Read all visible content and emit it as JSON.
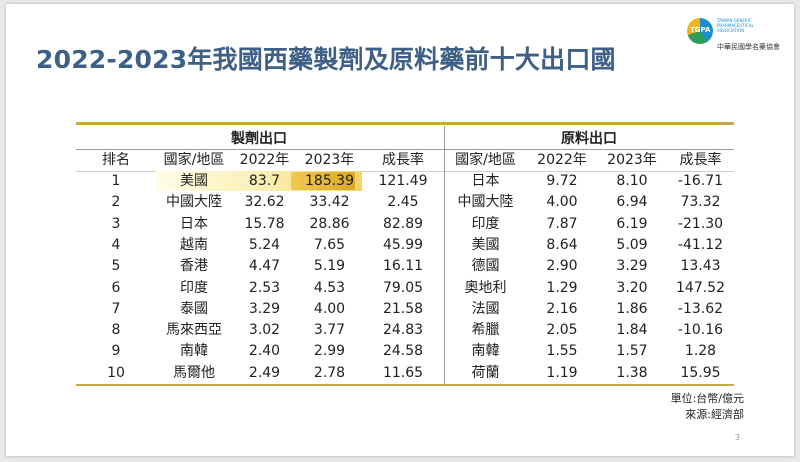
{
  "title": "2022-2023年我國西藥製劑及原料藥前十大出口國",
  "logo": {
    "english": "TAIWAN GENERIC PHARMACEUTICAL ASSOCIATION",
    "chinese": "中華民國學名藥協會",
    "mark": "TGPA"
  },
  "sections": {
    "left": "製劑出口",
    "right": "原料出口"
  },
  "headers": [
    "排名",
    "國家/地區",
    "2022年",
    "2023年",
    "成長率",
    "國家/地區",
    "2022年",
    "2023年",
    "成長率"
  ],
  "rows": [
    [
      "1",
      "美國",
      "83.7",
      "185.39",
      "121.49",
      "日本",
      "9.72",
      "8.10",
      "-16.71"
    ],
    [
      "2",
      "中國大陸",
      "32.62",
      "33.42",
      "2.45",
      "中國大陸",
      "4.00",
      "6.94",
      "73.32"
    ],
    [
      "3",
      "日本",
      "15.78",
      "28.86",
      "82.89",
      "印度",
      "7.87",
      "6.19",
      "-21.30"
    ],
    [
      "4",
      "越南",
      "5.24",
      "7.65",
      "45.99",
      "美國",
      "8.64",
      "5.09",
      "-41.12"
    ],
    [
      "5",
      "香港",
      "4.47",
      "5.19",
      "16.11",
      "德國",
      "2.90",
      "3.29",
      "13.43"
    ],
    [
      "6",
      "印度",
      "2.53",
      "4.53",
      "79.05",
      "奧地利",
      "1.29",
      "3.20",
      "147.52"
    ],
    [
      "7",
      "泰國",
      "3.29",
      "4.00",
      "21.58",
      "法國",
      "2.16",
      "1.86",
      "-13.62"
    ],
    [
      "8",
      "馬來西亞",
      "3.02",
      "3.77",
      "24.83",
      "希臘",
      "2.05",
      "1.84",
      "-10.16"
    ],
    [
      "9",
      "南韓",
      "2.40",
      "2.99",
      "24.58",
      "南韓",
      "1.55",
      "1.57",
      "1.28"
    ],
    [
      "10",
      "馬爾他",
      "2.49",
      "2.78",
      "11.65",
      "荷蘭",
      "1.19",
      "1.38",
      "15.95"
    ]
  ],
  "footer": {
    "unit": "單位:台幣/億元",
    "source": "來源:經濟部"
  },
  "page_number": "3",
  "colors": {
    "title": "#3e5f86",
    "rule": "#c7a74a",
    "highlight": "#f3d36a"
  }
}
